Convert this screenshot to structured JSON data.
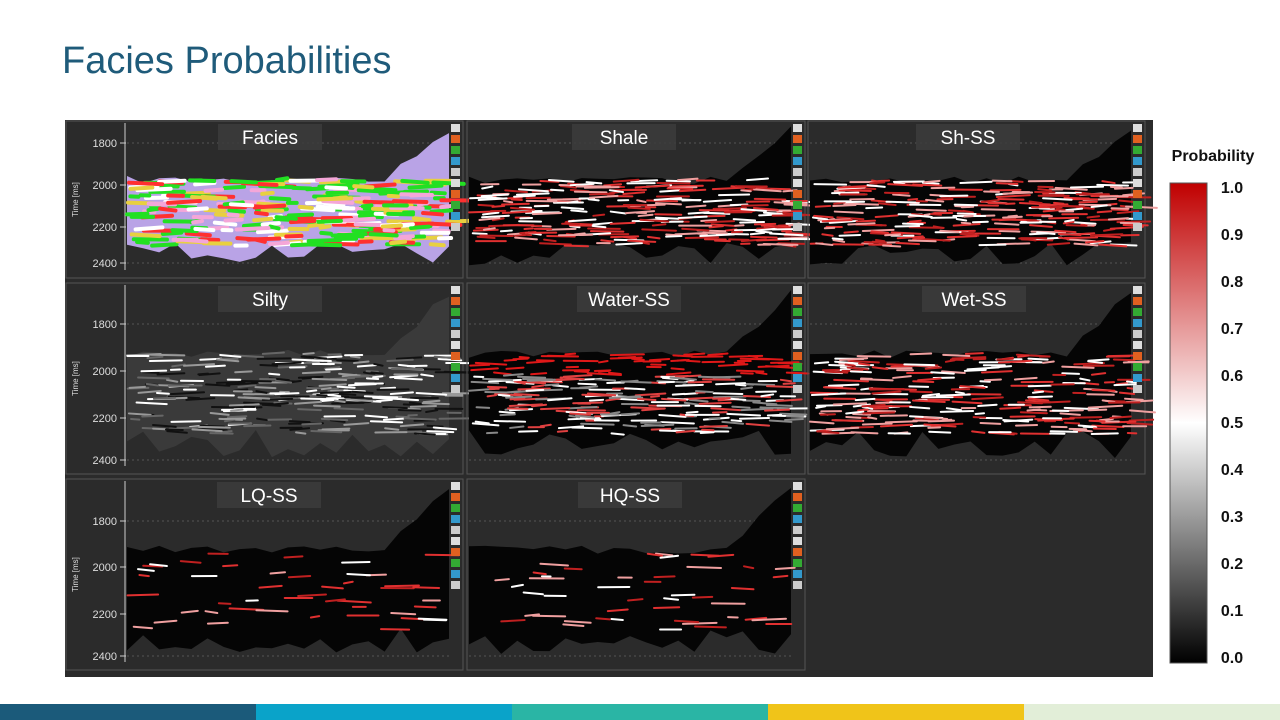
{
  "header": {
    "title": "Facies Probabilities"
  },
  "panels": [
    {
      "label": "Facies"
    },
    {
      "label": "Shale"
    },
    {
      "label": "Sh-SS"
    },
    {
      "label": "Silty"
    },
    {
      "label": "Water-SS"
    },
    {
      "label": "Wet-SS"
    },
    {
      "label": "LQ-SS"
    },
    {
      "label": "HQ-SS"
    }
  ],
  "time_axis": {
    "label": "Time [ms]",
    "ticks": [
      "1800",
      "2000",
      "2200",
      "2400"
    ]
  },
  "colorbar": {
    "title": "Probability",
    "ticks": [
      "1.0",
      "0.9",
      "0.8",
      "0.7",
      "0.6",
      "0.5",
      "0.4",
      "0.3",
      "0.2",
      "0.1",
      "0.0"
    ]
  }
}
